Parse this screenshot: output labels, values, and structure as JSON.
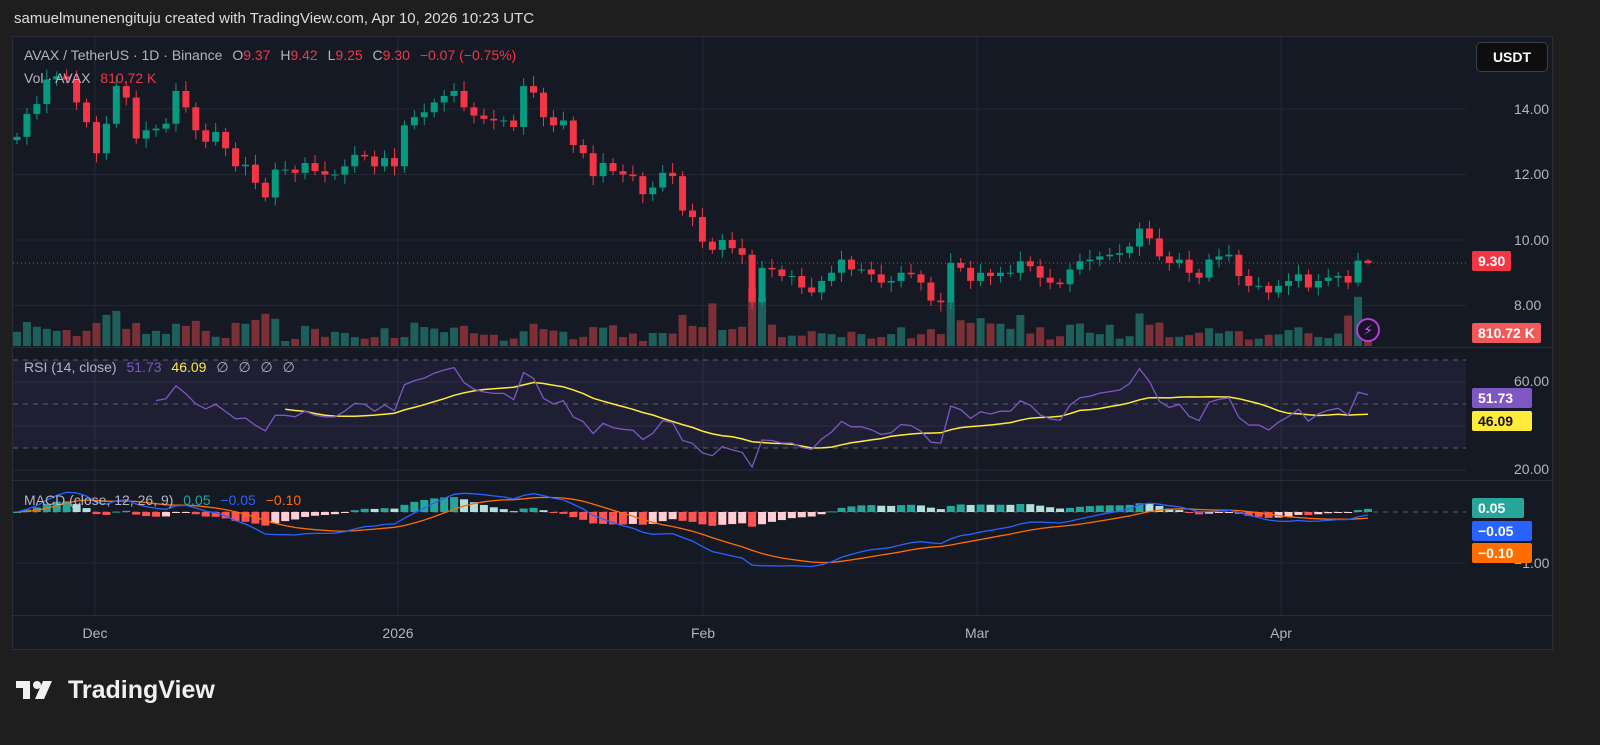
{
  "caption": "samuelmunenengituju created with TradingView.com, Apr 10, 2026 10:23 UTC",
  "legend": {
    "symbol": "AVAX / TetherUS · 1D · Binance",
    "o_label": "O",
    "o": "9.37",
    "h_label": "H",
    "h": "9.42",
    "l_label": "L",
    "l": "9.25",
    "c_label": "C",
    "c": "9.30",
    "change": "−0.07 (−0.75%)",
    "vol_label": "Vol · AVAX",
    "vol_value": "810.72 K"
  },
  "rsi_legend": {
    "label": "RSI (14, close)",
    "rsi": "51.73",
    "ma": "46.09",
    "extras": [
      "∅",
      "∅",
      "∅",
      "∅"
    ]
  },
  "macd_legend": {
    "label": "MACD (close, 12, 26, 9)",
    "hist": "0.05",
    "macd": "−0.05",
    "signal": "−0.10"
  },
  "currency_button": "USDT",
  "price_axis": [
    "14.00",
    "12.00",
    "10.00",
    "8.00"
  ],
  "rsi_axis": [
    "60.00",
    "20.00"
  ],
  "macd_axis": [
    "−1.00"
  ],
  "tags": {
    "price": "9.30",
    "volume": "810.72 K",
    "rsi": "51.73",
    "rsi_ma": "46.09",
    "hist": "0.05",
    "macd": "−0.05",
    "signal": "−0.10"
  },
  "time_axis": [
    "Dec",
    "2026",
    "Feb",
    "Mar",
    "Apr"
  ],
  "logo_text": "TradingView",
  "colors": {
    "up": "#089981",
    "down": "#f23645",
    "rsi": "#7e57c2",
    "rsi_ma": "#ffeb3b",
    "macd": "#2962ff",
    "signal": "#ff6d00",
    "hist_up": "#26a69a",
    "hist_down": "#ff5252"
  },
  "chart_data": {
    "type": "candlestick",
    "symbol": "AVAX / TetherUS",
    "interval": "1D",
    "ylim": [
      7.3,
      15.2
    ],
    "closes": [
      13.15,
      13.85,
      14.15,
      14.9,
      15.0,
      14.9,
      14.2,
      13.6,
      12.65,
      13.55,
      14.7,
      14.35,
      13.1,
      13.35,
      13.4,
      13.55,
      14.55,
      14.05,
      13.35,
      13.0,
      13.3,
      12.8,
      12.25,
      12.3,
      11.75,
      11.3,
      12.15,
      12.15,
      12.05,
      12.35,
      12.1,
      12.0,
      12.0,
      12.25,
      12.6,
      12.55,
      12.25,
      12.5,
      12.25,
      13.5,
      13.75,
      13.9,
      14.2,
      14.4,
      14.55,
      14.05,
      13.8,
      13.7,
      13.65,
      13.65,
      13.45,
      14.7,
      14.5,
      13.75,
      13.5,
      13.65,
      12.9,
      12.65,
      11.95,
      12.35,
      12.1,
      12.0,
      11.95,
      11.4,
      11.6,
      12.05,
      11.95,
      10.9,
      10.7,
      9.95,
      9.7,
      10.0,
      9.75,
      9.55,
      8.1,
      9.15,
      9.1,
      8.9,
      8.9,
      8.55,
      8.4,
      8.75,
      9.0,
      9.4,
      9.1,
      9.1,
      8.95,
      8.7,
      8.75,
      9.0,
      8.95,
      8.7,
      8.15,
      8.1,
      9.3,
      9.15,
      8.75,
      9.0,
      8.9,
      9.0,
      9.0,
      9.35,
      9.2,
      8.85,
      8.7,
      8.65,
      9.1,
      9.35,
      9.4,
      9.5,
      9.55,
      9.6,
      9.8,
      10.35,
      10.05,
      9.5,
      9.3,
      9.4,
      9.0,
      8.85,
      9.4,
      9.5,
      9.55,
      8.9,
      8.6,
      8.6,
      8.4,
      8.6,
      8.75,
      8.95,
      8.55,
      8.75,
      8.85,
      8.9,
      8.7,
      9.37,
      9.3
    ],
    "volumes_k": [
      480,
      810,
      650,
      580,
      510,
      540,
      340,
      510,
      780,
      1050,
      1190,
      580,
      780,
      410,
      510,
      410,
      750,
      680,
      850,
      510,
      310,
      270,
      780,
      750,
      880,
      1090,
      920,
      170,
      240,
      680,
      580,
      310,
      480,
      440,
      300,
      250,
      300,
      600,
      270,
      300,
      790,
      640,
      590,
      470,
      620,
      680,
      430,
      380,
      380,
      180,
      250,
      500,
      750,
      570,
      520,
      480,
      230,
      310,
      640,
      620,
      700,
      300,
      420,
      170,
      440,
      440,
      420,
      1050,
      680,
      640,
      1440,
      540,
      570,
      650,
      1960,
      1650,
      720,
      300,
      350,
      350,
      500,
      430,
      400,
      300,
      480,
      400,
      250,
      300,
      400,
      630,
      260,
      400,
      570,
      400,
      1500,
      870,
      780,
      940,
      760,
      750,
      580,
      1050,
      420,
      630,
      220,
      330,
      720,
      760,
      450,
      400,
      720,
      250,
      330,
      1100,
      720,
      790,
      300,
      310,
      370,
      450,
      600,
      430,
      500,
      500,
      220,
      250,
      380,
      390,
      540,
      630,
      430,
      300,
      270,
      420,
      1030,
      1660,
      810.72
    ],
    "last": {
      "open": 9.37,
      "high": 9.42,
      "low": 9.25,
      "close": 9.3
    },
    "rsi_bands": [
      70,
      50,
      30
    ],
    "grid": true
  }
}
